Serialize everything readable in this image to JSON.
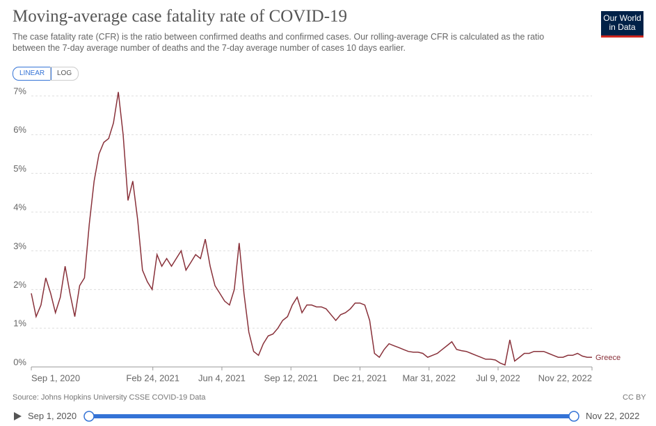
{
  "header": {
    "title": "Moving-average case fatality rate of COVID-19",
    "subtitle": "The case fatality rate (CFR) is the ratio between confirmed deaths and confirmed cases. Our rolling-average CFR is calculated as the ratio between the 7-day average number of deaths and the 7-day average number of cases 10 days earlier.",
    "logo": "Our World in Data",
    "scale_buttons": [
      "LINEAR",
      "LOG"
    ]
  },
  "chart_data": {
    "type": "line",
    "x": [
      "2020-09-01",
      "2020-09-08",
      "2020-09-15",
      "2020-09-22",
      "2020-09-29",
      "2020-10-06",
      "2020-10-13",
      "2020-10-20",
      "2020-10-27",
      "2020-11-03",
      "2020-11-10",
      "2020-11-17",
      "2020-11-24",
      "2020-12-01",
      "2020-12-08",
      "2020-12-15",
      "2020-12-22",
      "2020-12-29",
      "2021-01-05",
      "2021-01-12",
      "2021-01-19",
      "2021-01-26",
      "2021-02-02",
      "2021-02-09",
      "2021-02-16",
      "2021-02-23",
      "2021-03-02",
      "2021-03-09",
      "2021-03-16",
      "2021-03-23",
      "2021-03-30",
      "2021-04-06",
      "2021-04-13",
      "2021-04-20",
      "2021-04-27",
      "2021-05-04",
      "2021-05-11",
      "2021-05-18",
      "2021-05-25",
      "2021-06-01",
      "2021-06-08",
      "2021-06-15",
      "2021-06-22",
      "2021-06-29",
      "2021-07-06",
      "2021-07-13",
      "2021-07-20",
      "2021-07-27",
      "2021-08-03",
      "2021-08-10",
      "2021-08-17",
      "2021-08-24",
      "2021-08-31",
      "2021-09-07",
      "2021-09-14",
      "2021-09-21",
      "2021-09-28",
      "2021-10-05",
      "2021-10-12",
      "2021-10-19",
      "2021-10-26",
      "2021-11-02",
      "2021-11-09",
      "2021-11-16",
      "2021-11-23",
      "2021-11-30",
      "2021-12-07",
      "2021-12-14",
      "2021-12-21",
      "2021-12-28",
      "2022-01-04",
      "2022-01-11",
      "2022-01-18",
      "2022-01-25",
      "2022-02-01",
      "2022-02-08",
      "2022-02-15",
      "2022-02-22",
      "2022-03-01",
      "2022-03-08",
      "2022-03-15",
      "2022-03-22",
      "2022-03-29",
      "2022-04-05",
      "2022-04-12",
      "2022-04-19",
      "2022-04-26",
      "2022-05-03",
      "2022-05-10",
      "2022-05-17",
      "2022-05-24",
      "2022-05-31",
      "2022-06-07",
      "2022-06-14",
      "2022-06-21",
      "2022-06-28",
      "2022-07-05",
      "2022-07-12",
      "2022-07-19",
      "2022-07-26",
      "2022-08-02",
      "2022-08-09",
      "2022-08-16",
      "2022-08-23",
      "2022-08-30",
      "2022-09-06",
      "2022-09-13",
      "2022-09-20",
      "2022-09-27",
      "2022-10-04",
      "2022-10-11",
      "2022-10-18",
      "2022-10-25",
      "2022-11-01",
      "2022-11-08",
      "2022-11-15",
      "2022-11-22"
    ],
    "series": [
      {
        "name": "Greece",
        "color": "#883039",
        "values": [
          1.9,
          1.3,
          1.6,
          2.3,
          1.9,
          1.4,
          1.8,
          2.6,
          1.9,
          1.3,
          2.1,
          2.3,
          3.7,
          4.8,
          5.5,
          5.8,
          5.9,
          6.3,
          7.1,
          6.0,
          4.3,
          4.8,
          3.8,
          2.5,
          2.2,
          2.0,
          2.9,
          2.6,
          2.8,
          2.6,
          2.8,
          3.0,
          2.5,
          2.7,
          2.9,
          2.8,
          3.3,
          2.6,
          2.1,
          1.9,
          1.7,
          1.6,
          2.0,
          3.2,
          1.9,
          0.9,
          0.4,
          0.3,
          0.6,
          0.8,
          0.85,
          1.0,
          1.2,
          1.3,
          1.6,
          1.8,
          1.4,
          1.6,
          1.6,
          1.55,
          1.55,
          1.5,
          1.35,
          1.2,
          1.35,
          1.4,
          1.5,
          1.65,
          1.65,
          1.6,
          1.2,
          0.35,
          0.25,
          0.45,
          0.6,
          0.55,
          0.5,
          0.45,
          0.4,
          0.38,
          0.38,
          0.35,
          0.25,
          0.3,
          0.35,
          0.45,
          0.55,
          0.65,
          0.45,
          0.42,
          0.4,
          0.35,
          0.3,
          0.25,
          0.2,
          0.2,
          0.18,
          0.1,
          0.05,
          0.7,
          0.15,
          0.25,
          0.35,
          0.35,
          0.4,
          0.4,
          0.4,
          0.35,
          0.3,
          0.25,
          0.25,
          0.3,
          0.3,
          0.35,
          0.28,
          0.25,
          0.25
        ]
      }
    ],
    "xlim": [
      "2020-09-01",
      "2022-11-22"
    ],
    "xticks": [
      {
        "value": "2020-09-01",
        "label": "Sep 1, 2020"
      },
      {
        "value": "2021-02-24",
        "label": "Feb 24, 2021"
      },
      {
        "value": "2021-06-04",
        "label": "Jun 4, 2021"
      },
      {
        "value": "2021-09-12",
        "label": "Sep 12, 2021"
      },
      {
        "value": "2021-12-21",
        "label": "Dec 21, 2021"
      },
      {
        "value": "2022-03-31",
        "label": "Mar 31, 2022"
      },
      {
        "value": "2022-07-09",
        "label": "Jul 9, 2022"
      },
      {
        "value": "2022-11-22",
        "label": "Nov 22, 2022"
      }
    ],
    "ylim": [
      0,
      7
    ],
    "yticks": [
      {
        "value": 0,
        "label": "0%"
      },
      {
        "value": 1,
        "label": "1%"
      },
      {
        "value": 2,
        "label": "2%"
      },
      {
        "value": 3,
        "label": "3%"
      },
      {
        "value": 4,
        "label": "4%"
      },
      {
        "value": 5,
        "label": "5%"
      },
      {
        "value": 6,
        "label": "6%"
      },
      {
        "value": 7,
        "label": "7%"
      }
    ],
    "grid": true
  },
  "footer": {
    "source": "Source: Johns Hopkins University CSSE COVID-19 Data",
    "license": "CC BY"
  },
  "timeline": {
    "start": "Sep 1, 2020",
    "end": "Nov 22, 2022"
  }
}
